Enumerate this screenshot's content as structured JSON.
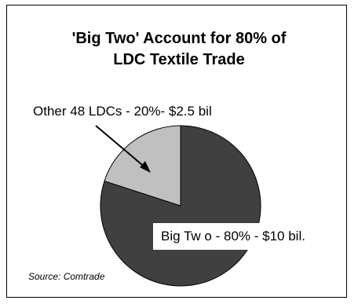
{
  "chart_data": {
    "type": "pie",
    "title_lines": [
      "'Big Two' Account for 80% of",
      "LDC Textile Trade"
    ],
    "slices": [
      {
        "label": "Big Tw o - 80% - $10 bil.",
        "percent": 80,
        "value": 10,
        "color": "#404040"
      },
      {
        "label": "Other 48 LDCs - 20%- $2.5 bil",
        "percent": 20,
        "value": 2.5,
        "color": "#c0c0c0"
      }
    ],
    "source": "Source: Comtrade"
  }
}
